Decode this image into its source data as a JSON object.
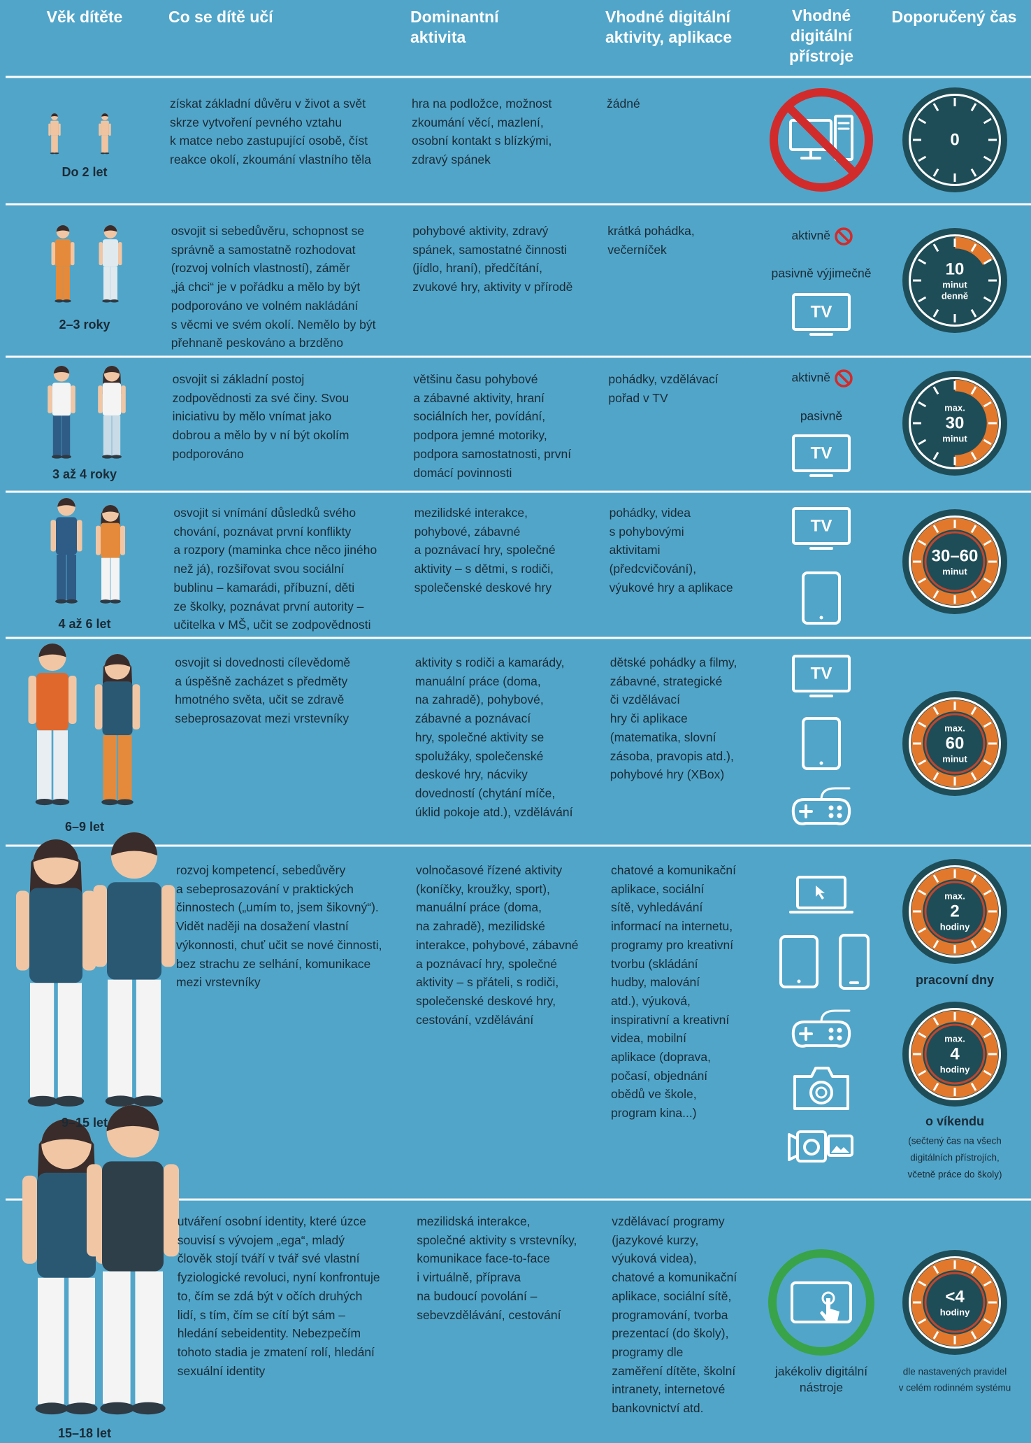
{
  "header": [
    "Věk dítěte",
    "Co se dítě učí",
    "Dominantní aktivita",
    "Vhodné digitální aktivity, aplikace",
    "Vhodné digitální přístroje",
    "Doporučený čas"
  ],
  "rows": [
    {
      "age": "Do 2 let",
      "learn": [
        "získat základní důvěru v život a svět",
        "skrze vytvoření pevného vztahu",
        "k matce nebo zastupující osobě, číst",
        "reakce okolí, zkoumání vlastního těla"
      ],
      "activity": [
        "hra na podložce, možnost",
        "zkoumání věcí, mazlení,",
        "osobní kontakt s blízkými,",
        "zdravý spánek"
      ],
      "apps": [
        "žádné"
      ],
      "devices": [],
      "clocks": [
        {
          "lines": [
            "0"
          ]
        }
      ]
    },
    {
      "age": "2–3 roky",
      "learn": [
        "osvojit si sebedůvěru, schopnost se",
        "správně a samostatně rozhodovat",
        "(rozvoj volních vlastností), záměr",
        "„já chci“ je v pořádku a mělo by být",
        "podporováno ve volném nakládání",
        "s věcmi ve svém okolí. Nemělo by být",
        "přehnaně peskováno a brzděno"
      ],
      "activity": [
        "pohybové aktivity, zdravý",
        "spánek, samostatné činnosti",
        "(jídlo, hraní), předčítání,",
        "zvukové hry, aktivity v přírodě"
      ],
      "apps": [
        "krátká pohádka,",
        "večerníček"
      ],
      "devices": [
        "aktivně",
        "pasivně výjimečně",
        "TV"
      ],
      "clocks": [
        {
          "lines": [
            "10",
            "minut",
            "denně"
          ]
        }
      ]
    },
    {
      "age": "3 až 4 roky",
      "learn": [
        "osvojit si základní postoj",
        "zodpovědnosti za své činy. Svou",
        "iniciativu by mělo vnímat jako",
        "dobrou a mělo by v ní být okolím",
        "podporováno"
      ],
      "activity": [
        "většinu času pohybové",
        "a zábavné aktivity, hraní",
        "sociálních her, povídání,",
        "podpora jemné motoriky,",
        "podpora samostatnosti, první",
        "domácí povinnosti"
      ],
      "apps": [
        "pohádky, vzdělávací",
        "pořad v TV"
      ],
      "devices": [
        "aktivně",
        "pasivně",
        "TV"
      ],
      "clocks": [
        {
          "lines": [
            "max.",
            "30",
            "minut"
          ]
        }
      ]
    },
    {
      "age": "4 až 6 let",
      "learn": [
        "osvojit si vnímání důsledků svého",
        "chování, poznávat první konflikty",
        "a rozpory (maminka chce něco jiného",
        "než já), rozšiřovat svou sociální",
        "bublinu – kamarádi, příbuzní, děti",
        "ze školky, poznávat první autority –",
        "učitelka v MŠ, učit se zodpovědnosti"
      ],
      "activity": [
        "mezilidské interakce,",
        "pohybové, zábavné",
        "a poznávací hry, společné",
        "aktivity – s dětmi, s rodiči,",
        "společenské deskové hry"
      ],
      "apps": [
        "pohádky, videa",
        "s pohybovými",
        "aktivitami",
        "(předcvičování),",
        "výukové hry a aplikace"
      ],
      "devices": [
        "TV"
      ],
      "clocks": [
        {
          "lines": [
            "30–60",
            "minut"
          ]
        }
      ]
    },
    {
      "age": "6–9 let",
      "learn": [
        "osvojit si dovednosti cílevědomě",
        "a úspěšně zacházet s předměty",
        "hmotného světa, učit se zdravě",
        "sebeprosazovat mezi vrstevníky"
      ],
      "activity": [
        "aktivity s rodiči a kamarády,",
        "manuální práce (doma,",
        "na zahradě), pohybové,",
        "zábavné a poznávací",
        "hry, společné aktivity se",
        "spolužáky, společenské",
        "deskové hry, nácviky",
        "dovedností (chytání míče,",
        "úklid pokoje atd.), vzdělávání"
      ],
      "apps": [
        "dětské pohádky a filmy,",
        "zábavné, strategické",
        "či vzdělávací",
        "hry či aplikace",
        "(matematika, slovní",
        "zásoba, pravopis atd.),",
        "pohybové hry (XBox)"
      ],
      "devices": [
        "TV"
      ],
      "clocks": [
        {
          "lines": [
            "max.",
            "60",
            "minut"
          ]
        }
      ]
    },
    {
      "age": "9–15 let",
      "learn": [
        "rozvoj kompetencí, sebedůvěry",
        "a sebeprosazování v praktických",
        "činnostech („umím to, jsem šikovný“).",
        "Vidět naději na dosažení vlastní",
        "výkonnosti, chuť učit se nové činnosti,",
        "bez strachu ze selhání, komunikace",
        "mezi vrstevníky"
      ],
      "activity": [
        "volnočasové řízené aktivity",
        "(koníčky, kroužky, sport),",
        "manuální práce (doma,",
        "na zahradě), mezilidské",
        "interakce, pohybové, zábavné",
        "a poznávací hry, společné",
        "aktivity – s přáteli, s rodiči,",
        "společenské deskové hry,",
        "cestování, vzdělávání"
      ],
      "apps": [
        "chatové a komunikační",
        "aplikace, sociální",
        "sítě, vyhledávání",
        "informací na internetu,",
        "programy pro kreativní",
        "tvorbu (skládání",
        "hudby, malování",
        "atd.), výuková,",
        "inspirativní a kreativní",
        "videa, mobilní",
        "aplikace (doprava,",
        "počasí, objednání",
        "obědů ve škole,",
        "program kina...)"
      ],
      "devices": [],
      "clocks": [
        {
          "lines": [
            "max.",
            "2",
            "hodiny"
          ],
          "caption": "pracovní dny"
        },
        {
          "lines": [
            "max.",
            "4",
            "hodiny"
          ],
          "caption": "o víkendu",
          "note": [
            "(sečtený čas na všech",
            "digitálních přístrojích,",
            "včetně práce do školy)"
          ]
        }
      ]
    },
    {
      "age": "15–18 let",
      "learn": [
        "utváření osobní identity, které úzce",
        "souvisí s vývojem „ega“, mladý",
        "člověk stojí tváří v tvář své vlastní",
        "fyziologické revoluci, nyní konfrontuje",
        "to, čím se zdá být v očích druhých",
        "lidí, s tím, čím se cítí být sám –",
        "hledání sebeidentity. Nebezpečím",
        "tohoto stadia je zmatení rolí, hledání",
        "sexuální identity"
      ],
      "activity": [
        "mezilidská interakce,",
        "společné aktivity s vrstevníky,",
        "komunikace face-to-face",
        "i virtuálně, příprava",
        "na budoucí povolání –",
        "sebevzdělávání, cestování"
      ],
      "apps": [
        "vzdělávací programy",
        "(jazykové kurzy,",
        "výuková videa),",
        "chatové a komunikační",
        "aplikace, sociální sítě,",
        "programování, tvorba",
        "prezentací (do školy),",
        "programy dle",
        "zaměření dítěte, školní",
        "intranety, internetové",
        "bankovnictví atd."
      ],
      "devices": [
        "jakékoliv digitální",
        "nástroje"
      ],
      "clocks": [
        {
          "lines": [
            "<4",
            "hodiny"
          ],
          "note": [
            "dle nastavených pravidel",
            "v celém rodinném systému"
          ]
        }
      ]
    }
  ]
}
